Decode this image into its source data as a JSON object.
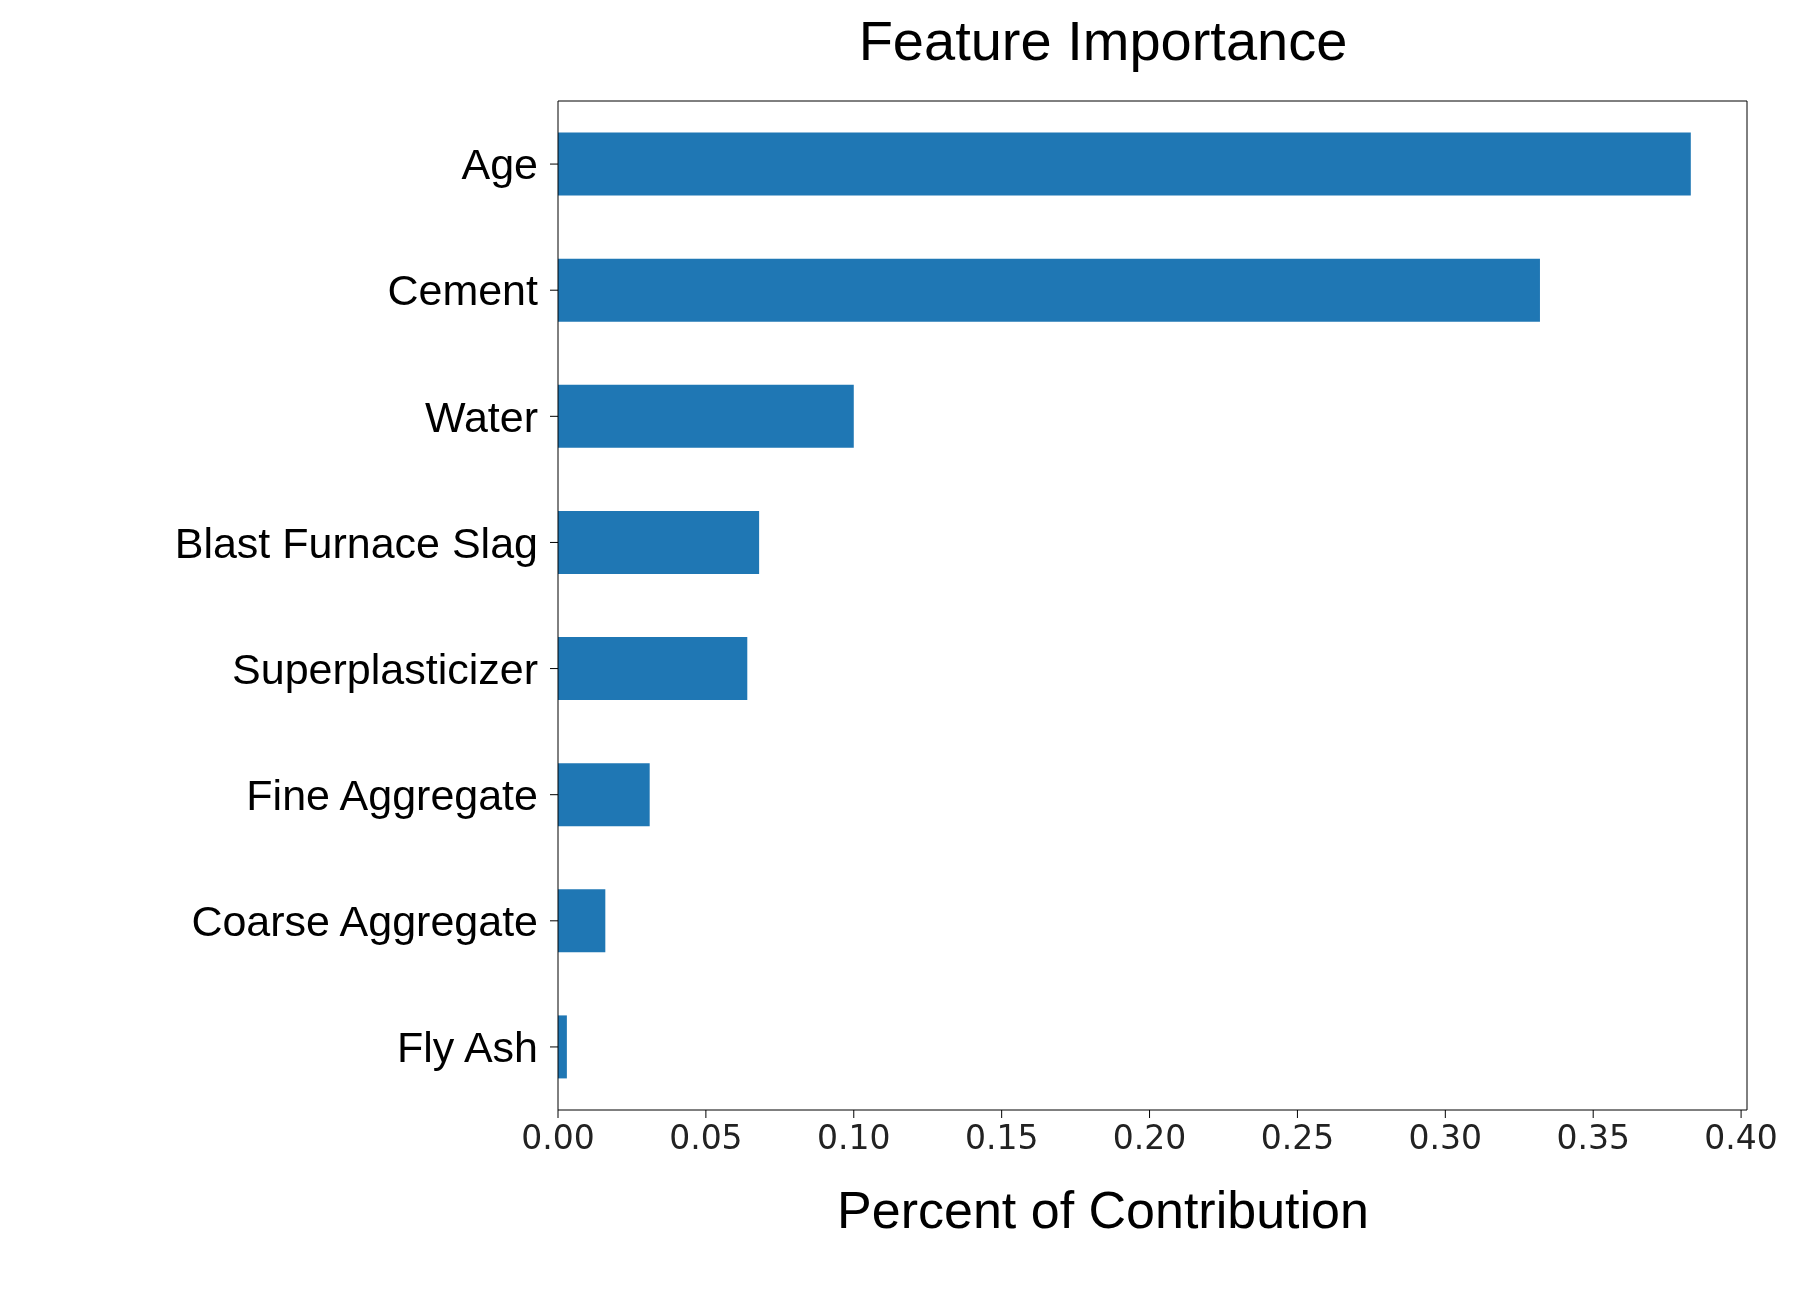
{
  "chart_data": {
    "type": "bar",
    "orientation": "horizontal",
    "title": "Feature Importance",
    "xlabel": "Percent of Contribution",
    "categories": [
      "Age",
      "Cement",
      "Water",
      "Blast Furnace Slag",
      "Superplasticizer",
      "Fine Aggregate",
      "Coarse Aggregate",
      "Fly Ash"
    ],
    "values": [
      0.383,
      0.332,
      0.1,
      0.068,
      0.064,
      0.031,
      0.016,
      0.003
    ],
    "color": "#1f77b4",
    "xlim": [
      0,
      0.402
    ],
    "xticks": [
      {
        "value": 0,
        "label": "0.00"
      },
      0.05,
      {
        "value": 0.1,
        "label": "0.10"
      },
      0.15,
      {
        "value": 0.2,
        "label": "0.20"
      },
      0.25,
      {
        "value": 0.3,
        "label": "0.30"
      },
      0.35,
      {
        "value": 0.4,
        "label": "0.40"
      }
    ],
    "grid": false,
    "legend": false
  }
}
